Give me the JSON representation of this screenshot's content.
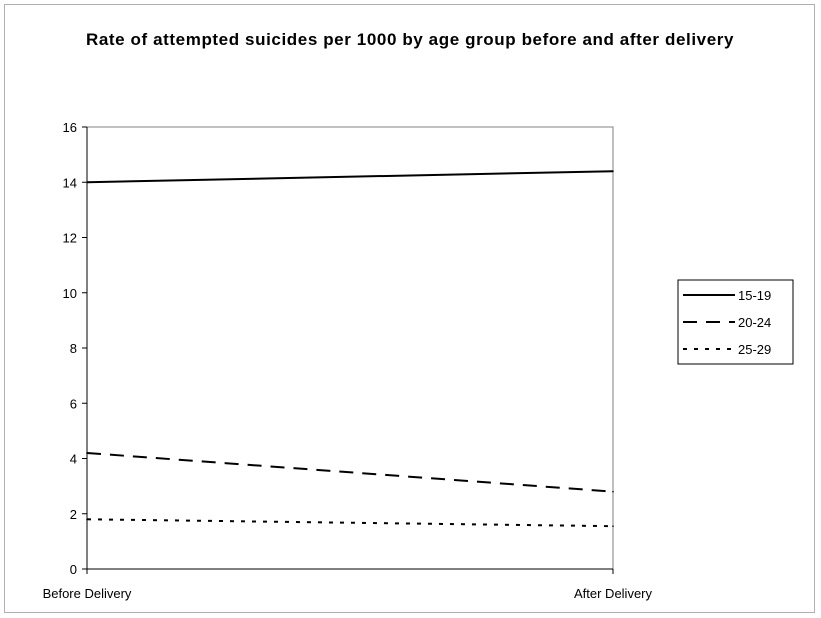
{
  "chart_data": {
    "type": "line",
    "title": "Rate of attempted suicides per 1000 by age group before and after delivery",
    "categories": [
      "Before Delivery",
      "After Delivery"
    ],
    "series": [
      {
        "name": "15-19",
        "values": [
          14.0,
          14.4
        ],
        "dash": "solid"
      },
      {
        "name": "20-24",
        "values": [
          4.2,
          2.8
        ],
        "dash": "dashed"
      },
      {
        "name": "25-29",
        "values": [
          1.8,
          1.55
        ],
        "dash": "dotted"
      }
    ],
    "xlabel": "",
    "ylabel": "",
    "ylim": [
      0,
      16
    ],
    "yticks": [
      "0",
      "2",
      "4",
      "6",
      "8",
      "10",
      "12",
      "14",
      "16"
    ],
    "grid": false,
    "legend": "right",
    "colors": {
      "line": "#000000",
      "plot_border": "#808080",
      "background": "#ffffff"
    }
  }
}
